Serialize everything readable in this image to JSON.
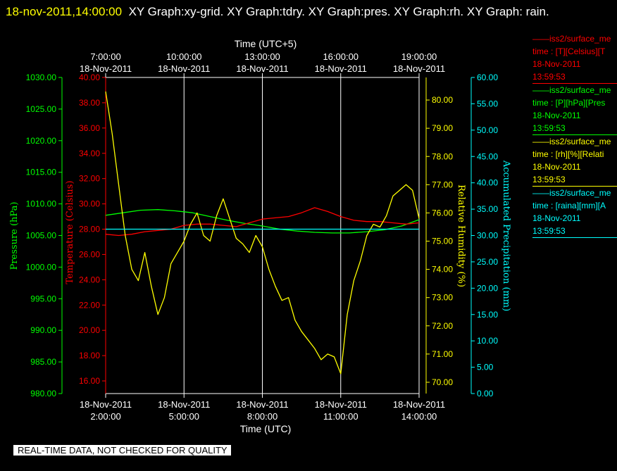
{
  "header": {
    "timestamp": "18-nov-2011,14:00:00",
    "title": "XY Graph:xy-grid.  XY Graph:tdry.  XY Graph:pres.  XY Graph:rh.  XY Graph: rain."
  },
  "disclaimer": "REAL-TIME DATA, NOT CHECKED FOR QUALITY",
  "colors": {
    "background": "#000000",
    "temperature": "#ff0000",
    "pressure": "#00ff00",
    "humidity": "#ffff00",
    "precipitation": "#00ffff",
    "frame": "#ffffff"
  },
  "legend": [
    {
      "title": "——iss2/surface_me",
      "line1": "time : [T][Celsius][T",
      "line2": "18-Nov-2011",
      "line3": "13:59:53",
      "color": "#ff0000"
    },
    {
      "title": "——iss2/surface_me",
      "line1": "time : [P][hPa][Pres",
      "line2": "18-Nov-2011",
      "line3": "13:59:53",
      "color": "#00ff00"
    },
    {
      "title": "——iss2/surface_me",
      "line1": "time : [rh][%][Relati",
      "line2": "18-Nov-2011",
      "line3": "13:59:53",
      "color": "#ffff00"
    },
    {
      "title": "——iss2/surface_me",
      "line1": "time : [raina][mm][A",
      "line2": "18-Nov-2011",
      "line3": "13:59:53",
      "color": "#00ffff"
    }
  ],
  "chart_data": {
    "type": "line",
    "grid": true,
    "x_bottom": {
      "label": "Time (UTC)",
      "range": [
        "2011-11-18 02:00",
        "2011-11-18 14:00"
      ],
      "ticks": [
        {
          "time": "2011-11-18 02:00",
          "date": "18-Nov-2011",
          "label": "2:00:00"
        },
        {
          "time": "2011-11-18 05:00",
          "date": "18-Nov-2011",
          "label": "5:00:00"
        },
        {
          "time": "2011-11-18 08:00",
          "date": "18-Nov-2011",
          "label": "8:00:00"
        },
        {
          "time": "2011-11-18 11:00",
          "date": "18-Nov-2011",
          "label": "11:00:00"
        },
        {
          "time": "2011-11-18 14:00",
          "date": "18-Nov-2011",
          "label": "14:00:00"
        }
      ]
    },
    "x_top": {
      "label": "Time (UTC+5)",
      "ticks": [
        {
          "time": "2011-11-18 02:00",
          "label": "7:00:00",
          "date": "18-Nov-2011"
        },
        {
          "time": "2011-11-18 05:00",
          "label": "10:00:00",
          "date": "18-Nov-2011"
        },
        {
          "time": "2011-11-18 08:00",
          "label": "13:00:00",
          "date": "18-Nov-2011"
        },
        {
          "time": "2011-11-18 11:00",
          "label": "16:00:00",
          "date": "18-Nov-2011"
        },
        {
          "time": "2011-11-18 14:00",
          "label": "19:00:00",
          "date": "18-Nov-2011"
        }
      ]
    },
    "y_axes": [
      {
        "id": "pressure",
        "label": "Pressure (hPa)",
        "color": "#00ff00",
        "range": [
          980,
          1030
        ],
        "ticks": [
          "980.00",
          "985.00",
          "990.00",
          "995.00",
          "1000.00",
          "1005.00",
          "1010.00",
          "1015.00",
          "1020.00",
          "1025.00",
          "1030.00"
        ]
      },
      {
        "id": "temperature",
        "label": "Temperature (Celsius)",
        "color": "#ff0000",
        "range": [
          15,
          40
        ],
        "ticks": [
          "16.00",
          "18.00",
          "20.00",
          "22.00",
          "24.00",
          "26.00",
          "28.00",
          "30.00",
          "32.00",
          "34.00",
          "36.00",
          "38.00",
          "40.00"
        ]
      },
      {
        "id": "humidity",
        "label": "Relative Humidity (%)",
        "color": "#ffff00",
        "range": [
          69.6,
          80.8
        ],
        "ticks": [
          "70.00",
          "71.00",
          "72.00",
          "73.00",
          "74.00",
          "75.00",
          "76.00",
          "77.00",
          "78.00",
          "79.00",
          "80.00"
        ]
      },
      {
        "id": "precipitation",
        "label": "Accumulated Precipitation (mm)",
        "color": "#00ffff",
        "range": [
          0,
          60
        ],
        "ticks": [
          "0.00",
          "5.00",
          "10.00",
          "15.00",
          "20.00",
          "25.00",
          "30.00",
          "35.00",
          "40.00",
          "45.00",
          "50.00",
          "55.00",
          "60.00"
        ]
      }
    ],
    "series": [
      {
        "axis": "pressure",
        "color": "#00ff00",
        "x": [
          "2011-11-18 02:00",
          "2011-11-18 02:40",
          "2011-11-18 03:20",
          "2011-11-18 04:00",
          "2011-11-18 04:40",
          "2011-11-18 05:20",
          "2011-11-18 06:00",
          "2011-11-18 06:40",
          "2011-11-18 07:20",
          "2011-11-18 08:00",
          "2011-11-18 08:40",
          "2011-11-18 09:20",
          "2011-11-18 10:00",
          "2011-11-18 10:40",
          "2011-11-18 11:20",
          "2011-11-18 12:00",
          "2011-11-18 12:40",
          "2011-11-18 13:20",
          "2011-11-18 14:00"
        ],
        "y": [
          1008.2,
          1008.6,
          1009.0,
          1009.1,
          1008.9,
          1008.6,
          1008.0,
          1007.4,
          1006.9,
          1006.5,
          1006.0,
          1005.7,
          1005.5,
          1005.4,
          1005.4,
          1005.6,
          1005.9,
          1006.5,
          1007.5
        ]
      },
      {
        "axis": "temperature",
        "color": "#ff0000",
        "x": [
          "2011-11-18 02:00",
          "2011-11-18 02:30",
          "2011-11-18 03:00",
          "2011-11-18 03:30",
          "2011-11-18 04:00",
          "2011-11-18 04:30",
          "2011-11-18 05:00",
          "2011-11-18 05:30",
          "2011-11-18 06:00",
          "2011-11-18 06:30",
          "2011-11-18 07:00",
          "2011-11-18 07:30",
          "2011-11-18 08:00",
          "2011-11-18 08:30",
          "2011-11-18 09:00",
          "2011-11-18 09:30",
          "2011-11-18 10:00",
          "2011-11-18 10:30",
          "2011-11-18 11:00",
          "2011-11-18 11:30",
          "2011-11-18 12:00",
          "2011-11-18 12:30",
          "2011-11-18 13:00",
          "2011-11-18 13:30",
          "2011-11-18 14:00"
        ],
        "y": [
          27.6,
          27.5,
          27.6,
          27.8,
          27.9,
          28.0,
          28.3,
          28.4,
          28.4,
          28.3,
          28.2,
          28.5,
          28.8,
          28.9,
          29.0,
          29.3,
          29.7,
          29.4,
          29.0,
          28.7,
          28.6,
          28.6,
          28.5,
          28.4,
          28.5
        ]
      },
      {
        "axis": "humidity",
        "color": "#ffff00",
        "x": [
          "2011-11-18 02:00",
          "2011-11-18 02:15",
          "2011-11-18 02:30",
          "2011-11-18 02:45",
          "2011-11-18 03:00",
          "2011-11-18 03:15",
          "2011-11-18 03:30",
          "2011-11-18 03:45",
          "2011-11-18 04:00",
          "2011-11-18 04:15",
          "2011-11-18 04:30",
          "2011-11-18 04:45",
          "2011-11-18 05:00",
          "2011-11-18 05:15",
          "2011-11-18 05:30",
          "2011-11-18 05:45",
          "2011-11-18 06:00",
          "2011-11-18 06:15",
          "2011-11-18 06:30",
          "2011-11-18 06:45",
          "2011-11-18 07:00",
          "2011-11-18 07:15",
          "2011-11-18 07:30",
          "2011-11-18 07:45",
          "2011-11-18 08:00",
          "2011-11-18 08:15",
          "2011-11-18 08:30",
          "2011-11-18 08:45",
          "2011-11-18 09:00",
          "2011-11-18 09:15",
          "2011-11-18 09:30",
          "2011-11-18 09:45",
          "2011-11-18 10:00",
          "2011-11-18 10:15",
          "2011-11-18 10:30",
          "2011-11-18 10:45",
          "2011-11-18 11:00",
          "2011-11-18 11:15",
          "2011-11-18 11:30",
          "2011-11-18 11:45",
          "2011-11-18 12:00",
          "2011-11-18 12:15",
          "2011-11-18 12:30",
          "2011-11-18 12:45",
          "2011-11-18 13:00",
          "2011-11-18 13:15",
          "2011-11-18 13:30",
          "2011-11-18 13:45",
          "2011-11-18 14:00"
        ],
        "y": [
          80.3,
          78.8,
          77.0,
          75.2,
          74.0,
          73.6,
          74.6,
          73.4,
          72.4,
          73.0,
          74.2,
          74.6,
          75.0,
          75.6,
          76.0,
          75.2,
          75.0,
          75.9,
          76.5,
          75.8,
          75.1,
          74.9,
          74.6,
          75.2,
          74.8,
          74.0,
          73.4,
          72.9,
          73.0,
          72.2,
          71.8,
          71.5,
          71.2,
          70.8,
          71.0,
          70.9,
          70.3,
          72.4,
          73.6,
          74.3,
          75.2,
          75.6,
          75.5,
          75.9,
          76.6,
          76.8,
          77.0,
          76.8,
          75.8
        ]
      },
      {
        "axis": "precipitation",
        "color": "#00ffff",
        "x": [
          "2011-11-18 02:00",
          "2011-11-18 14:00"
        ],
        "y": [
          31.2,
          31.2
        ]
      }
    ]
  }
}
